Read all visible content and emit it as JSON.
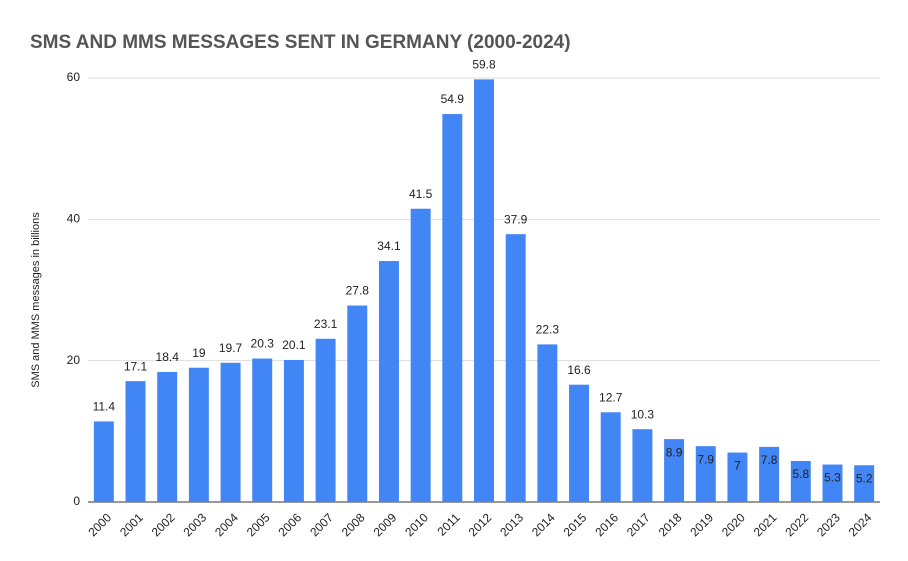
{
  "chart_data": {
    "type": "bar",
    "title": "SMS AND MMS MESSAGES SENT IN GERMANY (2000-2024)",
    "y_label": "SMS and MMS messages in billions",
    "categories": [
      "2000",
      "2001",
      "2002",
      "2003",
      "2004",
      "2005",
      "2006",
      "2007",
      "2008",
      "2009",
      "2010",
      "2011",
      "2012",
      "2013",
      "2014",
      "2015",
      "2016",
      "2017",
      "2018",
      "2019",
      "2020",
      "2021",
      "2022",
      "2023",
      "2024"
    ],
    "values": [
      11.4,
      17.1,
      18.4,
      19,
      19.7,
      20.3,
      20.1,
      23.1,
      27.8,
      34.1,
      41.5,
      54.9,
      59.8,
      37.9,
      22.3,
      16.6,
      12.7,
      10.3,
      8.9,
      7.9,
      7,
      7.8,
      5.8,
      5.3,
      5.2
    ],
    "color": "#4285f4",
    "ylim": [
      0,
      60
    ],
    "yticks": [
      0,
      20,
      40,
      60
    ],
    "grid": true
  }
}
